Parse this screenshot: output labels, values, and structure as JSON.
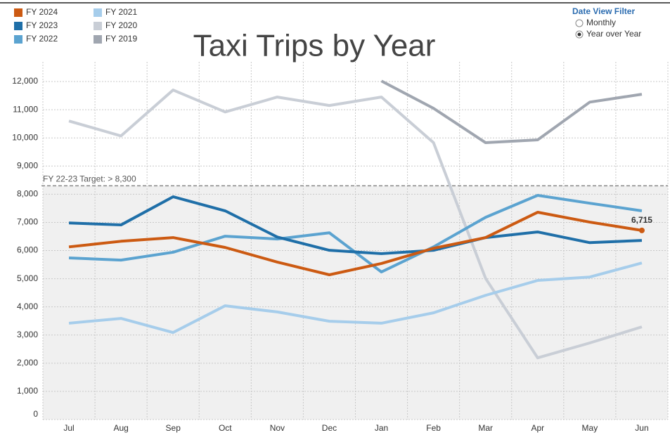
{
  "chart_data": {
    "type": "line",
    "title": "Taxi Trips by Year",
    "categories": [
      "Jul",
      "Aug",
      "Sep",
      "Oct",
      "Nov",
      "Dec",
      "Jan",
      "Feb",
      "Mar",
      "Apr",
      "May",
      "Jun"
    ],
    "series": [
      {
        "name": "FY 2024",
        "color": "#cc5a12",
        "values": [
          6130,
          6330,
          6460,
          6110,
          5590,
          5140,
          5540,
          6080,
          6460,
          7360,
          7010,
          6715
        ],
        "value_labels": [
          null,
          null,
          null,
          null,
          null,
          null,
          null,
          null,
          null,
          null,
          null,
          "6,715"
        ]
      },
      {
        "name": "FY 2023",
        "color": "#1f6fa8",
        "values": [
          6980,
          6910,
          7910,
          7410,
          6480,
          6010,
          5890,
          6010,
          6460,
          6660,
          6280,
          6360
        ]
      },
      {
        "name": "FY 2022",
        "color": "#5ba3d0",
        "values": [
          5740,
          5660,
          5940,
          6510,
          6410,
          6630,
          5240,
          6130,
          7180,
          7960,
          7680,
          7410
        ]
      },
      {
        "name": "FY 2021",
        "color": "#a6cdeb",
        "values": [
          3420,
          3590,
          3090,
          4040,
          3820,
          3490,
          3420,
          3790,
          4410,
          4940,
          5060,
          5560
        ]
      },
      {
        "name": "FY 2020",
        "color": "#c9ced6",
        "values": [
          10600,
          10070,
          11700,
          10920,
          11450,
          11150,
          11450,
          9830,
          5010,
          2190,
          2720,
          3290
        ]
      },
      {
        "name": "FY 2019",
        "color": "#a0a6b0",
        "values": [
          null,
          null,
          null,
          null,
          null,
          null,
          12020,
          11050,
          9830,
          9930,
          11270,
          11550
        ]
      }
    ],
    "ylim": [
      0,
      12700
    ],
    "yticks": [
      0,
      {
        "value": 1000,
        "label": "1,000"
      },
      {
        "value": 2000,
        "label": "2,000"
      },
      {
        "value": 3000,
        "label": "3,000"
      },
      {
        "value": 4000,
        "label": "4,000"
      },
      {
        "value": 5000,
        "label": "5,000"
      },
      {
        "value": 6000,
        "label": "6,000"
      },
      {
        "value": 7000,
        "label": "7,000"
      },
      {
        "value": 8000,
        "label": "8,000"
      },
      {
        "value": 9000,
        "label": "9,000"
      },
      {
        "value": 10000,
        "label": "10,000"
      },
      {
        "value": 11000,
        "label": "11,000"
      },
      {
        "value": 12000,
        "label": "12,000"
      }
    ],
    "grid": true,
    "target": {
      "value": 8300,
      "label": "FY 22-23 Target: > 8,300"
    },
    "filter": {
      "title": "Date View Filter",
      "options": [
        "Monthly",
        "Year over Year"
      ],
      "selected": 1
    }
  }
}
